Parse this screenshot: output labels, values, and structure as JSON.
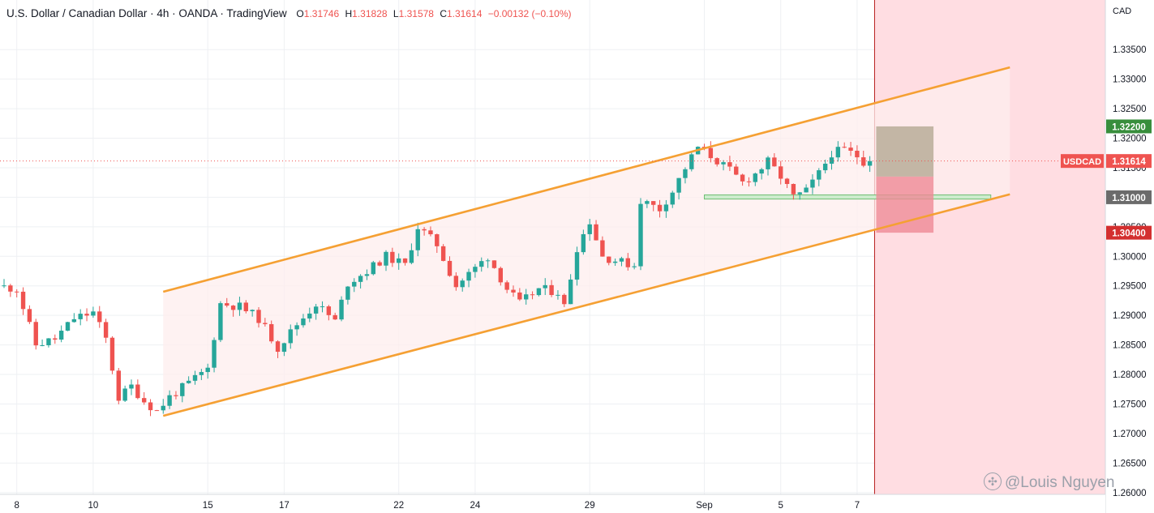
{
  "header": {
    "title": "U.S. Dollar / Canadian Dollar · 4h · OANDA · TradingView",
    "ohlc": [
      {
        "label": "O",
        "value": "1.31746"
      },
      {
        "label": "H",
        "value": "1.31828"
      },
      {
        "label": "L",
        "value": "1.31578"
      },
      {
        "label": "C",
        "value": "1.31614"
      },
      {
        "label": "",
        "value": "−0.00132 (−0.10%)"
      }
    ]
  },
  "watermark": {
    "text": "@Louis Nguyen",
    "icon": "forum-bubble-icon"
  },
  "colors": {
    "up": "#26a69a",
    "down": "#ef5350",
    "channel": "#f5a033",
    "channel_fill": "#fdeeee",
    "forecast_zone": "#ffdde2",
    "target": "#388e3c",
    "stop": "#d32f2f",
    "support": "#6b6b6b",
    "current": "#ef5350",
    "axis_text": "#131722"
  },
  "chart_data": {
    "type": "candlestick",
    "symbol": "USDCAD",
    "timeframe": "4h",
    "y_axis": {
      "currency": "CAD",
      "range": [
        1.2597,
        1.3434
      ],
      "ticks": [
        "1.33500",
        "1.33000",
        "1.32500",
        "1.32000",
        "1.31500",
        "1.31000",
        "1.30500",
        "1.30000",
        "1.29500",
        "1.29000",
        "1.28500",
        "1.28000",
        "1.27500",
        "1.27000",
        "1.26500",
        "1.26000"
      ]
    },
    "x_axis": {
      "ticks": [
        {
          "label": "8",
          "bar": 2
        },
        {
          "label": "10",
          "bar": 14
        },
        {
          "label": "15",
          "bar": 32
        },
        {
          "label": "17",
          "bar": 44
        },
        {
          "label": "22",
          "bar": 62
        },
        {
          "label": "24",
          "bar": 74
        },
        {
          "label": "29",
          "bar": 92
        },
        {
          "label": "Sep",
          "bar": 110
        },
        {
          "label": "5",
          "bar": 122
        },
        {
          "label": "7",
          "bar": 134
        }
      ]
    },
    "bar_count": 137,
    "anchors": [
      {
        "bar": 0,
        "price": 1.295
      },
      {
        "bar": 3,
        "price": 1.2945
      },
      {
        "bar": 6,
        "price": 1.285
      },
      {
        "bar": 9,
        "price": 1.286
      },
      {
        "bar": 12,
        "price": 1.2895
      },
      {
        "bar": 15,
        "price": 1.2905
      },
      {
        "bar": 17,
        "price": 1.286
      },
      {
        "bar": 19,
        "price": 1.276
      },
      {
        "bar": 21,
        "price": 1.278
      },
      {
        "bar": 23,
        "price": 1.2755
      },
      {
        "bar": 25,
        "price": 1.2738
      },
      {
        "bar": 27,
        "price": 1.2762
      },
      {
        "bar": 30,
        "price": 1.2785
      },
      {
        "bar": 33,
        "price": 1.281
      },
      {
        "bar": 35,
        "price": 1.292
      },
      {
        "bar": 38,
        "price": 1.2915
      },
      {
        "bar": 41,
        "price": 1.2895
      },
      {
        "bar": 44,
        "price": 1.2845
      },
      {
        "bar": 47,
        "price": 1.2885
      },
      {
        "bar": 50,
        "price": 1.292
      },
      {
        "bar": 53,
        "price": 1.289
      },
      {
        "bar": 55,
        "price": 1.2955
      },
      {
        "bar": 58,
        "price": 1.2975
      },
      {
        "bar": 61,
        "price": 1.3
      },
      {
        "bar": 64,
        "price": 1.2985
      },
      {
        "bar": 66,
        "price": 1.305
      },
      {
        "bar": 69,
        "price": 1.302
      },
      {
        "bar": 72,
        "price": 1.295
      },
      {
        "bar": 75,
        "price": 1.298
      },
      {
        "bar": 77,
        "price": 1.3
      },
      {
        "bar": 80,
        "price": 1.2945
      },
      {
        "bar": 82,
        "price": 1.292
      },
      {
        "bar": 85,
        "price": 1.2945
      },
      {
        "bar": 88,
        "price": 1.294
      },
      {
        "bar": 89,
        "price": 1.2915
      },
      {
        "bar": 91,
        "price": 1.3015
      },
      {
        "bar": 93,
        "price": 1.306
      },
      {
        "bar": 95,
        "price": 1.3
      },
      {
        "bar": 98,
        "price": 1.299
      },
      {
        "bar": 100,
        "price": 1.2985
      },
      {
        "bar": 101,
        "price": 1.3095
      },
      {
        "bar": 104,
        "price": 1.308
      },
      {
        "bar": 106,
        "price": 1.311
      },
      {
        "bar": 108,
        "price": 1.315
      },
      {
        "bar": 110,
        "price": 1.3185
      },
      {
        "bar": 112,
        "price": 1.317
      },
      {
        "bar": 115,
        "price": 1.3145
      },
      {
        "bar": 117,
        "price": 1.3125
      },
      {
        "bar": 119,
        "price": 1.314
      },
      {
        "bar": 121,
        "price": 1.316
      },
      {
        "bar": 123,
        "price": 1.3135
      },
      {
        "bar": 125,
        "price": 1.31
      },
      {
        "bar": 127,
        "price": 1.311
      },
      {
        "bar": 129,
        "price": 1.314
      },
      {
        "bar": 131,
        "price": 1.3175
      },
      {
        "bar": 133,
        "price": 1.318
      },
      {
        "bar": 135,
        "price": 1.317
      },
      {
        "bar": 136,
        "price": 1.3161
      }
    ],
    "channel": {
      "upper": [
        {
          "bar": 25,
          "price": 1.294
        },
        {
          "bar": 158,
          "price": 1.332
        }
      ],
      "lower": [
        {
          "bar": 25,
          "price": 1.273
        },
        {
          "bar": 158,
          "price": 1.3105
        }
      ]
    },
    "support_zone": {
      "from_bar": 110,
      "to_bar": 155,
      "price_low": 1.3097,
      "price_high": 1.3104
    },
    "forecast_zone": {
      "from_bar": 137
    },
    "position": {
      "from_bar": 137,
      "to_bar": 146,
      "entry": 1.3135,
      "target": 1.322,
      "stop": 1.304
    },
    "price_labels": [
      {
        "text": "1.32200",
        "price": 1.322,
        "role": "target"
      },
      {
        "text": "1.31614",
        "price": 1.31614,
        "role": "current",
        "tag": "USDCAD"
      },
      {
        "text": "1.31000",
        "price": 1.31,
        "role": "support"
      },
      {
        "text": "1.30400",
        "price": 1.304,
        "role": "stop"
      }
    ]
  }
}
